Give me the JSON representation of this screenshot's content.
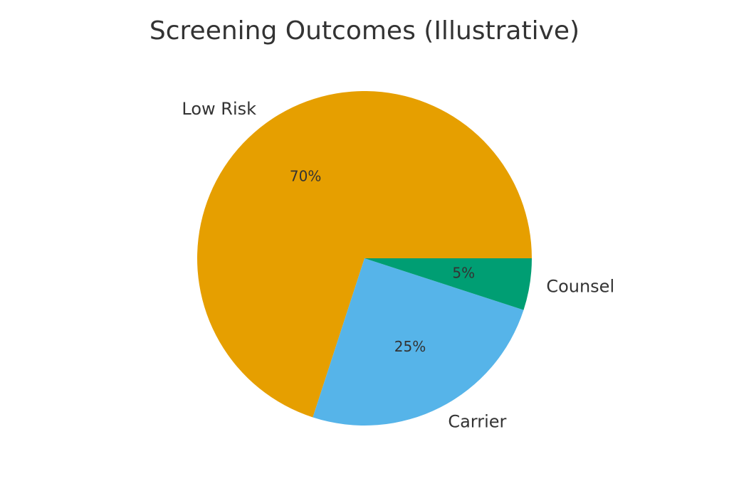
{
  "chart_data": {
    "type": "pie",
    "title": "Screening Outcomes (Illustrative)",
    "categories": [
      "Low Risk",
      "Carrier",
      "Counsel"
    ],
    "values": [
      70,
      25,
      5
    ],
    "value_labels": [
      "70%",
      "25%",
      "5%"
    ],
    "colors": [
      "#E69F00",
      "#56B4E9",
      "#009E73"
    ],
    "start_angle_deg": 0,
    "direction": "counterclockwise"
  }
}
